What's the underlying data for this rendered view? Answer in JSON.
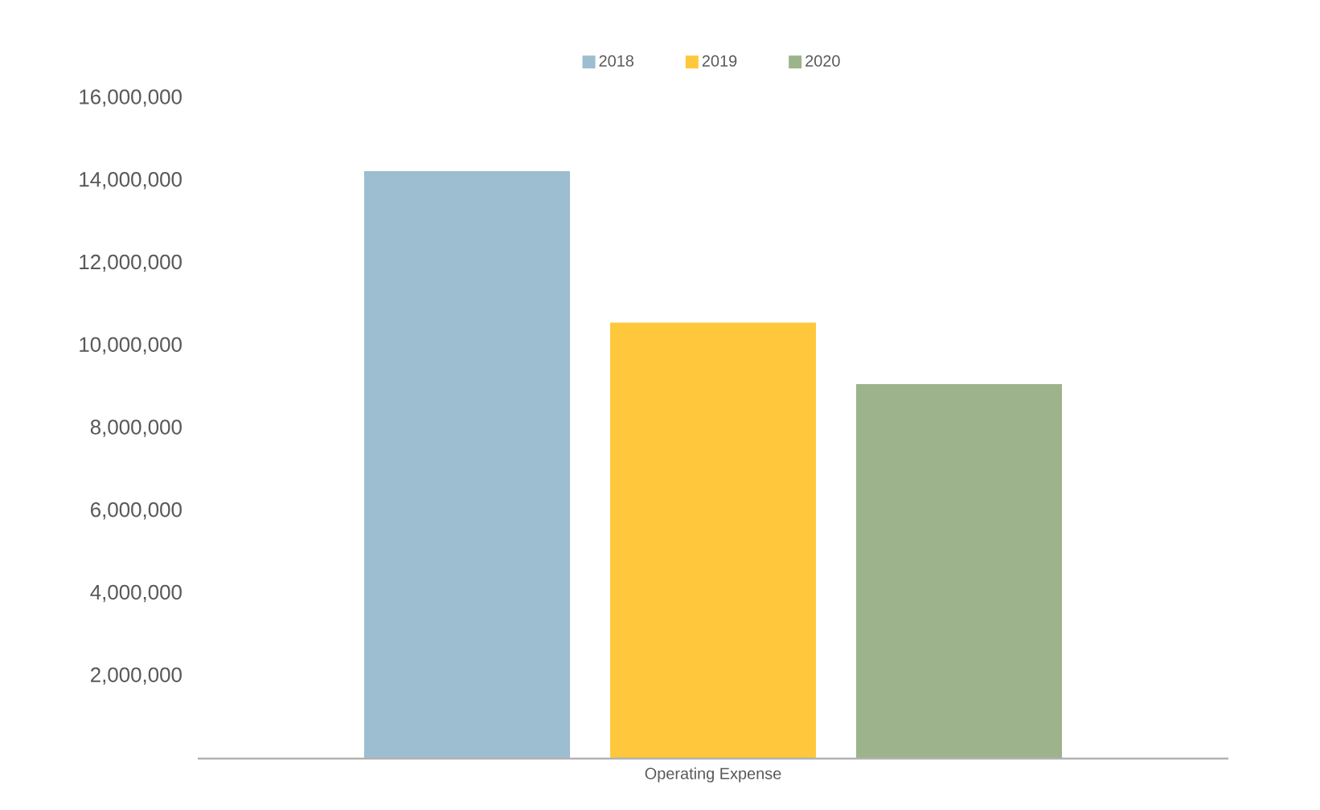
{
  "chart_data": {
    "type": "bar",
    "categories": [
      "Operating Expense"
    ],
    "series": [
      {
        "name": "2018",
        "color": "#9dbdd0",
        "values": [
          14230000
        ]
      },
      {
        "name": "2019",
        "color": "#ffc83c",
        "values": [
          10560000
        ]
      },
      {
        "name": "2020",
        "color": "#9cb38c",
        "values": [
          9070000
        ]
      }
    ],
    "ylim": [
      0,
      16000000
    ],
    "yticks": [
      {
        "value": 2000000,
        "label": "2,000,000"
      },
      {
        "value": 4000000,
        "label": "4,000,000"
      },
      {
        "value": 6000000,
        "label": "6,000,000"
      },
      {
        "value": 8000000,
        "label": "8,000,000"
      },
      {
        "value": 10000000,
        "label": "10,000,000"
      },
      {
        "value": 12000000,
        "label": "12,000,000"
      },
      {
        "value": 14000000,
        "label": "14,000,000"
      },
      {
        "value": 16000000,
        "label": "16,000,000"
      }
    ],
    "grid": false,
    "legend": "top"
  }
}
